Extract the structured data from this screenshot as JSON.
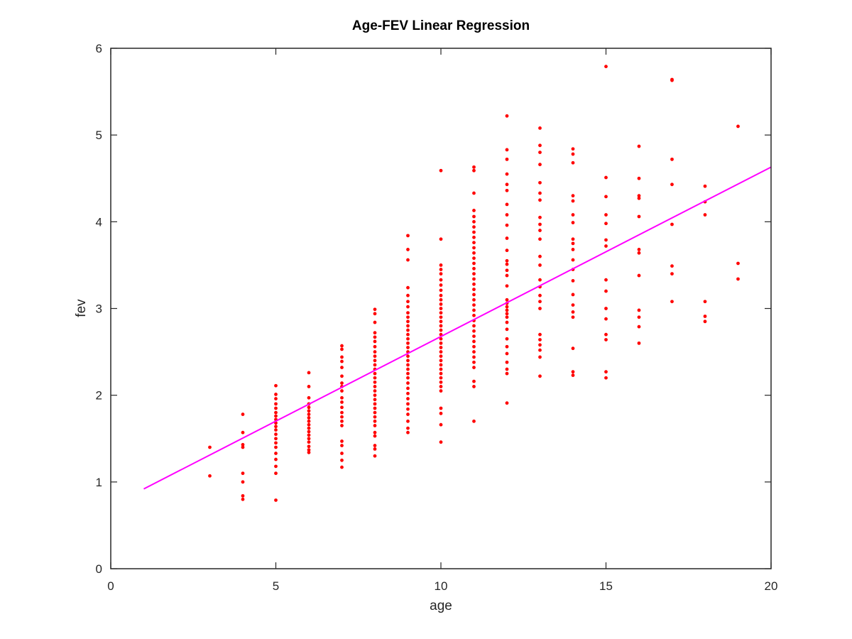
{
  "chart_data": {
    "type": "scatter",
    "title": "Age-FEV Linear Regression",
    "xlabel": "age",
    "ylabel": "fev",
    "xlim": [
      0,
      20
    ],
    "ylim": [
      0,
      6
    ],
    "xticks": [
      0,
      5,
      10,
      15,
      20
    ],
    "yticks": [
      0,
      1,
      2,
      3,
      4,
      5,
      6
    ],
    "grid": false,
    "colors": {
      "points": "#ff0000",
      "fit_line": "#ff00ff",
      "axes": "#262626"
    },
    "series": [
      {
        "type": "scatter",
        "points": [
          [
            3,
            1.4
          ],
          [
            3,
            1.07
          ],
          [
            4,
            1.78
          ],
          [
            4,
            1.57
          ],
          [
            4,
            1.43
          ],
          [
            4,
            1.4
          ],
          [
            4,
            1.1
          ],
          [
            4,
            1.0
          ],
          [
            4,
            0.84
          ],
          [
            4,
            0.8
          ],
          [
            5,
            2.11
          ],
          [
            5,
            2.01
          ],
          [
            5,
            1.96
          ],
          [
            5,
            1.9
          ],
          [
            5,
            1.85
          ],
          [
            5,
            1.8
          ],
          [
            5,
            1.76
          ],
          [
            5,
            1.72
          ],
          [
            5,
            1.68
          ],
          [
            5,
            1.64
          ],
          [
            5,
            1.6
          ],
          [
            5,
            1.55
          ],
          [
            5,
            1.5
          ],
          [
            5,
            1.45
          ],
          [
            5,
            1.4
          ],
          [
            5,
            1.33
          ],
          [
            5,
            1.26
          ],
          [
            5,
            1.18
          ],
          [
            5,
            1.1
          ],
          [
            5,
            0.79
          ],
          [
            6,
            2.26
          ],
          [
            6,
            2.1
          ],
          [
            6,
            1.97
          ],
          [
            6,
            1.9
          ],
          [
            6,
            1.86
          ],
          [
            6,
            1.82
          ],
          [
            6,
            1.78
          ],
          [
            6,
            1.74
          ],
          [
            6,
            1.7
          ],
          [
            6,
            1.66
          ],
          [
            6,
            1.62
          ],
          [
            6,
            1.58
          ],
          [
            6,
            1.54
          ],
          [
            6,
            1.5
          ],
          [
            6,
            1.46
          ],
          [
            6,
            1.41
          ],
          [
            6,
            1.37
          ],
          [
            6,
            1.34
          ],
          [
            7,
            2.57
          ],
          [
            7,
            2.53
          ],
          [
            7,
            2.44
          ],
          [
            7,
            2.39
          ],
          [
            7,
            2.32
          ],
          [
            7,
            2.22
          ],
          [
            7,
            2.14
          ],
          [
            7,
            2.1
          ],
          [
            7,
            2.05
          ],
          [
            7,
            1.97
          ],
          [
            7,
            1.92
          ],
          [
            7,
            1.86
          ],
          [
            7,
            1.8
          ],
          [
            7,
            1.75
          ],
          [
            7,
            1.7
          ],
          [
            7,
            1.65
          ],
          [
            7,
            1.47
          ],
          [
            7,
            1.42
          ],
          [
            7,
            1.33
          ],
          [
            7,
            1.25
          ],
          [
            7,
            1.17
          ],
          [
            8,
            2.99
          ],
          [
            8,
            2.94
          ],
          [
            8,
            2.84
          ],
          [
            8,
            2.72
          ],
          [
            8,
            2.67
          ],
          [
            8,
            2.62
          ],
          [
            8,
            2.56
          ],
          [
            8,
            2.5
          ],
          [
            8,
            2.45
          ],
          [
            8,
            2.4
          ],
          [
            8,
            2.35
          ],
          [
            8,
            2.3
          ],
          [
            8,
            2.25
          ],
          [
            8,
            2.2
          ],
          [
            8,
            2.15
          ],
          [
            8,
            2.1
          ],
          [
            8,
            2.05
          ],
          [
            8,
            2.0
          ],
          [
            8,
            1.95
          ],
          [
            8,
            1.9
          ],
          [
            8,
            1.85
          ],
          [
            8,
            1.8
          ],
          [
            8,
            1.75
          ],
          [
            8,
            1.7
          ],
          [
            8,
            1.65
          ],
          [
            8,
            1.57
          ],
          [
            8,
            1.53
          ],
          [
            8,
            1.42
          ],
          [
            8,
            1.38
          ],
          [
            8,
            1.3
          ],
          [
            9,
            3.84
          ],
          [
            9,
            3.68
          ],
          [
            9,
            3.56
          ],
          [
            9,
            3.24
          ],
          [
            9,
            3.15
          ],
          [
            9,
            3.08
          ],
          [
            9,
            3.02
          ],
          [
            9,
            2.95
          ],
          [
            9,
            2.9
          ],
          [
            9,
            2.85
          ],
          [
            9,
            2.8
          ],
          [
            9,
            2.75
          ],
          [
            9,
            2.7
          ],
          [
            9,
            2.65
          ],
          [
            9,
            2.6
          ],
          [
            9,
            2.55
          ],
          [
            9,
            2.5
          ],
          [
            9,
            2.45
          ],
          [
            9,
            2.4
          ],
          [
            9,
            2.35
          ],
          [
            9,
            2.3
          ],
          [
            9,
            2.25
          ],
          [
            9,
            2.2
          ],
          [
            9,
            2.14
          ],
          [
            9,
            2.08
          ],
          [
            9,
            2.02
          ],
          [
            9,
            1.96
          ],
          [
            9,
            1.9
          ],
          [
            9,
            1.84
          ],
          [
            9,
            1.78
          ],
          [
            9,
            1.7
          ],
          [
            9,
            1.62
          ],
          [
            9,
            1.57
          ],
          [
            10,
            4.59
          ],
          [
            10,
            3.8
          ],
          [
            10,
            3.5
          ],
          [
            10,
            3.45
          ],
          [
            10,
            3.4
          ],
          [
            10,
            3.33
          ],
          [
            10,
            3.27
          ],
          [
            10,
            3.21
          ],
          [
            10,
            3.15
          ],
          [
            10,
            3.1
          ],
          [
            10,
            3.05
          ],
          [
            10,
            3.0
          ],
          [
            10,
            2.95
          ],
          [
            10,
            2.9
          ],
          [
            10,
            2.85
          ],
          [
            10,
            2.8
          ],
          [
            10,
            2.75
          ],
          [
            10,
            2.7
          ],
          [
            10,
            2.65
          ],
          [
            10,
            2.6
          ],
          [
            10,
            2.55
          ],
          [
            10,
            2.5
          ],
          [
            10,
            2.45
          ],
          [
            10,
            2.4
          ],
          [
            10,
            2.35
          ],
          [
            10,
            2.3
          ],
          [
            10,
            2.25
          ],
          [
            10,
            2.2
          ],
          [
            10,
            2.15
          ],
          [
            10,
            2.1
          ],
          [
            10,
            2.05
          ],
          [
            10,
            1.85
          ],
          [
            10,
            1.79
          ],
          [
            10,
            1.66
          ],
          [
            10,
            1.46
          ],
          [
            11,
            4.63
          ],
          [
            11,
            4.59
          ],
          [
            11,
            4.33
          ],
          [
            11,
            4.13
          ],
          [
            11,
            4.06
          ],
          [
            11,
            4.0
          ],
          [
            11,
            3.94
          ],
          [
            11,
            3.88
          ],
          [
            11,
            3.82
          ],
          [
            11,
            3.76
          ],
          [
            11,
            3.7
          ],
          [
            11,
            3.64
          ],
          [
            11,
            3.58
          ],
          [
            11,
            3.52
          ],
          [
            11,
            3.46
          ],
          [
            11,
            3.4
          ],
          [
            11,
            3.34
          ],
          [
            11,
            3.28
          ],
          [
            11,
            3.22
          ],
          [
            11,
            3.16
          ],
          [
            11,
            3.1
          ],
          [
            11,
            3.04
          ],
          [
            11,
            2.98
          ],
          [
            11,
            2.92
          ],
          [
            11,
            2.86
          ],
          [
            11,
            2.8
          ],
          [
            11,
            2.74
          ],
          [
            11,
            2.68
          ],
          [
            11,
            2.62
          ],
          [
            11,
            2.56
          ],
          [
            11,
            2.5
          ],
          [
            11,
            2.44
          ],
          [
            11,
            2.38
          ],
          [
            11,
            2.32
          ],
          [
            11,
            2.16
          ],
          [
            11,
            2.1
          ],
          [
            11,
            1.7
          ],
          [
            12,
            5.22
          ],
          [
            12,
            4.83
          ],
          [
            12,
            4.72
          ],
          [
            12,
            4.55
          ],
          [
            12,
            4.43
          ],
          [
            12,
            4.36
          ],
          [
            12,
            4.2
          ],
          [
            12,
            4.08
          ],
          [
            12,
            3.96
          ],
          [
            12,
            3.81
          ],
          [
            12,
            3.67
          ],
          [
            12,
            3.55
          ],
          [
            12,
            3.51
          ],
          [
            12,
            3.44
          ],
          [
            12,
            3.38
          ],
          [
            12,
            3.26
          ],
          [
            12,
            3.1
          ],
          [
            12,
            3.06
          ],
          [
            12,
            3.02
          ],
          [
            12,
            2.98
          ],
          [
            12,
            2.94
          ],
          [
            12,
            2.9
          ],
          [
            12,
            2.84
          ],
          [
            12,
            2.76
          ],
          [
            12,
            2.65
          ],
          [
            12,
            2.56
          ],
          [
            12,
            2.48
          ],
          [
            12,
            2.38
          ],
          [
            12,
            2.3
          ],
          [
            12,
            2.25
          ],
          [
            12,
            1.91
          ],
          [
            13,
            5.08
          ],
          [
            13,
            4.88
          ],
          [
            13,
            4.8
          ],
          [
            13,
            4.66
          ],
          [
            13,
            4.45
          ],
          [
            13,
            4.33
          ],
          [
            13,
            4.25
          ],
          [
            13,
            4.05
          ],
          [
            13,
            3.97
          ],
          [
            13,
            3.9
          ],
          [
            13,
            3.8
          ],
          [
            13,
            3.6
          ],
          [
            13,
            3.5
          ],
          [
            13,
            3.33
          ],
          [
            13,
            3.25
          ],
          [
            13,
            3.15
          ],
          [
            13,
            3.08
          ],
          [
            13,
            3.0
          ],
          [
            13,
            2.7
          ],
          [
            13,
            2.64
          ],
          [
            13,
            2.58
          ],
          [
            13,
            2.52
          ],
          [
            13,
            2.44
          ],
          [
            13,
            2.22
          ],
          [
            14,
            4.84
          ],
          [
            14,
            4.78
          ],
          [
            14,
            4.68
          ],
          [
            14,
            4.3
          ],
          [
            14,
            4.24
          ],
          [
            14,
            4.08
          ],
          [
            14,
            3.99
          ],
          [
            14,
            3.8
          ],
          [
            14,
            3.75
          ],
          [
            14,
            3.68
          ],
          [
            14,
            3.56
          ],
          [
            14,
            3.45
          ],
          [
            14,
            3.32
          ],
          [
            14,
            3.16
          ],
          [
            14,
            3.04
          ],
          [
            14,
            2.96
          ],
          [
            14,
            2.9
          ],
          [
            14,
            2.54
          ],
          [
            14,
            2.27
          ],
          [
            14,
            2.23
          ],
          [
            15,
            5.79
          ],
          [
            15,
            4.51
          ],
          [
            15,
            4.29
          ],
          [
            15,
            4.08
          ],
          [
            15,
            3.98
          ],
          [
            15,
            3.79
          ],
          [
            15,
            3.72
          ],
          [
            15,
            3.33
          ],
          [
            15,
            3.2
          ],
          [
            15,
            3.0
          ],
          [
            15,
            2.88
          ],
          [
            15,
            2.7
          ],
          [
            15,
            2.64
          ],
          [
            15,
            2.27
          ],
          [
            15,
            2.2
          ],
          [
            16,
            4.87
          ],
          [
            16,
            4.5
          ],
          [
            16,
            4.3
          ],
          [
            16,
            4.27
          ],
          [
            16,
            4.06
          ],
          [
            16,
            3.68
          ],
          [
            16,
            3.64
          ],
          [
            16,
            3.38
          ],
          [
            16,
            2.98
          ],
          [
            16,
            2.9
          ],
          [
            16,
            2.79
          ],
          [
            16,
            2.6
          ],
          [
            17,
            5.64
          ],
          [
            17,
            5.63
          ],
          [
            17,
            4.72
          ],
          [
            17,
            4.43
          ],
          [
            17,
            3.97
          ],
          [
            17,
            3.49
          ],
          [
            17,
            3.4
          ],
          [
            17,
            3.08
          ],
          [
            18,
            4.41
          ],
          [
            18,
            4.23
          ],
          [
            18,
            4.08
          ],
          [
            18,
            3.08
          ],
          [
            18,
            2.91
          ],
          [
            18,
            2.85
          ],
          [
            19,
            5.1
          ],
          [
            19,
            3.52
          ],
          [
            19,
            3.34
          ]
        ]
      },
      {
        "type": "line",
        "x": [
          1,
          20
        ],
        "y": [
          0.92,
          4.63
        ]
      }
    ]
  }
}
